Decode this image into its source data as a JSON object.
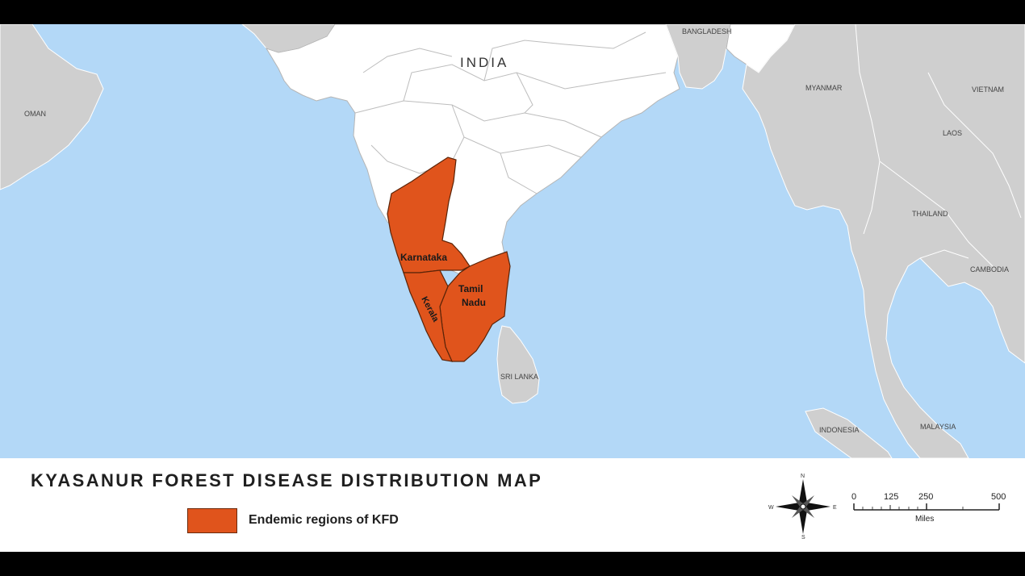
{
  "map": {
    "country_labels": {
      "india": "INDIA",
      "bangladesh": "BANGLADESH",
      "oman": "OMAN",
      "myanmar": "MYANMAR",
      "vietnam": "VIETNAM",
      "laos": "LAOS",
      "thailand": "THAILAND",
      "cambodia": "CAMBODIA",
      "sri_lanka": "SRI LANKA",
      "indonesia": "INDONESIA",
      "malaysia": "MALAYSIA"
    },
    "state_labels": {
      "karnataka": "Karnataka",
      "tamil_1": "Tamil",
      "tamil_2": "Nadu",
      "kerala": "Kerala"
    },
    "colors": {
      "water": "#b3d8f7",
      "other_land": "#cfcfcf",
      "india": "#ffffff",
      "endemic": "#e0541c"
    }
  },
  "legend": {
    "title": "KYASANUR FOREST DISEASE DISTRIBUTION MAP",
    "item_label": "Endemic regions of KFD"
  },
  "compass": {
    "n": "N",
    "s": "S",
    "e": "E",
    "w": "W"
  },
  "scale": {
    "ticks": [
      "0",
      "125",
      "250",
      "500"
    ],
    "unit": "Miles"
  }
}
